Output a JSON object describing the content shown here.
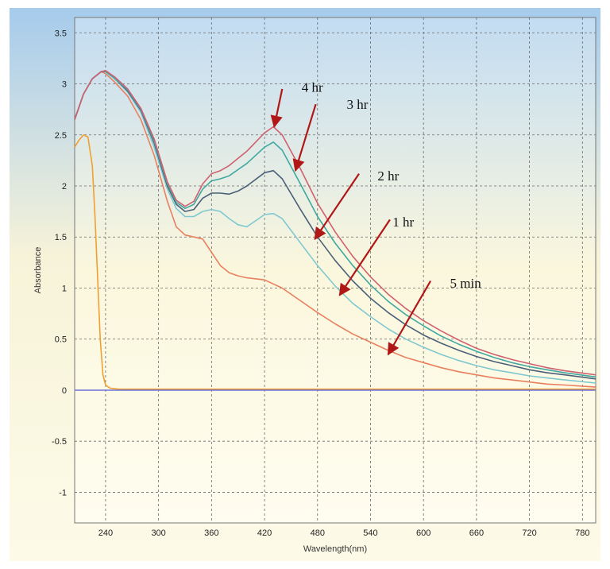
{
  "chart_data": {
    "type": "line",
    "xlabel": "Wavelength(nm)",
    "ylabel": "Absorbance",
    "xlim": [
      205,
      795
    ],
    "ylim": [
      -1.3,
      3.65
    ],
    "xticks": [
      240,
      300,
      360,
      420,
      480,
      540,
      600,
      660,
      720,
      780
    ],
    "yticks": [
      3.5,
      3,
      2.5,
      2,
      1.5,
      1,
      0.5,
      0,
      -0.5,
      -1
    ],
    "xtick_labels": [
      "240",
      "300",
      "360",
      "420",
      "480",
      "540",
      "600",
      "660",
      "720",
      "780"
    ],
    "ytick_labels": [
      "3.5",
      "3",
      "2.5",
      "2",
      "1.5",
      "1",
      "0.5",
      "0",
      "-0.5",
      "-1"
    ],
    "grid": true,
    "background": "gradient sky-blue to pale yellow",
    "series": [
      {
        "color": "#f0a030",
        "x": [
          205,
          210,
          215,
          220,
          225,
          228,
          231,
          234,
          237,
          240,
          245,
          255,
          270,
          300,
          400,
          795
        ],
        "y": [
          2.38,
          2.45,
          2.5,
          2.48,
          2.2,
          1.7,
          1.1,
          0.5,
          0.15,
          0.05,
          0.02,
          0.01,
          0.01,
          0.01,
          0.01,
          0.01
        ]
      },
      {
        "color": "#e88060",
        "x": [
          205,
          215,
          225,
          235,
          240,
          250,
          265,
          280,
          295,
          310,
          320,
          330,
          340,
          350,
          360,
          370,
          380,
          390,
          400,
          420,
          440,
          460,
          480,
          500,
          520,
          540,
          560,
          580,
          600,
          620,
          640,
          660,
          680,
          700,
          720,
          740,
          760,
          795
        ],
        "y": [
          2.65,
          2.9,
          3.05,
          3.12,
          3.1,
          3.02,
          2.88,
          2.65,
          2.3,
          1.85,
          1.6,
          1.52,
          1.5,
          1.48,
          1.35,
          1.22,
          1.15,
          1.12,
          1.1,
          1.08,
          1.0,
          0.88,
          0.76,
          0.65,
          0.55,
          0.47,
          0.39,
          0.32,
          0.27,
          0.22,
          0.18,
          0.15,
          0.12,
          0.1,
          0.08,
          0.06,
          0.05,
          0.03
        ]
      },
      {
        "color": "#80c8d0",
        "x": [
          205,
          215,
          225,
          235,
          240,
          250,
          265,
          280,
          295,
          310,
          320,
          330,
          340,
          350,
          360,
          370,
          380,
          390,
          400,
          420,
          430,
          440,
          460,
          480,
          500,
          520,
          540,
          560,
          580,
          600,
          620,
          640,
          660,
          680,
          700,
          720,
          740,
          760,
          795
        ],
        "y": [
          2.65,
          2.9,
          3.05,
          3.12,
          3.12,
          3.05,
          2.92,
          2.72,
          2.38,
          1.97,
          1.78,
          1.7,
          1.7,
          1.75,
          1.77,
          1.75,
          1.68,
          1.62,
          1.6,
          1.72,
          1.73,
          1.68,
          1.45,
          1.22,
          1.02,
          0.85,
          0.72,
          0.6,
          0.5,
          0.42,
          0.35,
          0.29,
          0.24,
          0.2,
          0.17,
          0.14,
          0.12,
          0.1,
          0.07
        ]
      },
      {
        "color": "#4a6078",
        "x": [
          205,
          215,
          225,
          235,
          240,
          250,
          265,
          280,
          295,
          310,
          320,
          330,
          340,
          350,
          360,
          370,
          380,
          390,
          400,
          420,
          430,
          440,
          460,
          480,
          500,
          520,
          540,
          560,
          580,
          600,
          620,
          640,
          660,
          680,
          700,
          720,
          740,
          760,
          795
        ],
        "y": [
          2.65,
          2.9,
          3.05,
          3.12,
          3.12,
          3.06,
          2.93,
          2.74,
          2.42,
          2.0,
          1.82,
          1.75,
          1.77,
          1.88,
          1.93,
          1.93,
          1.92,
          1.95,
          2.0,
          2.13,
          2.15,
          2.07,
          1.78,
          1.5,
          1.27,
          1.07,
          0.9,
          0.76,
          0.64,
          0.54,
          0.46,
          0.39,
          0.33,
          0.28,
          0.24,
          0.2,
          0.17,
          0.15,
          0.11
        ]
      },
      {
        "color": "#40a8a0",
        "x": [
          205,
          215,
          225,
          235,
          240,
          250,
          265,
          280,
          295,
          310,
          320,
          330,
          340,
          350,
          360,
          370,
          380,
          390,
          400,
          420,
          430,
          440,
          460,
          480,
          500,
          520,
          540,
          560,
          580,
          600,
          620,
          640,
          660,
          680,
          700,
          720,
          740,
          760,
          795
        ],
        "y": [
          2.65,
          2.9,
          3.05,
          3.12,
          3.12,
          3.06,
          2.94,
          2.75,
          2.44,
          2.02,
          1.84,
          1.78,
          1.82,
          1.97,
          2.05,
          2.07,
          2.1,
          2.16,
          2.22,
          2.38,
          2.43,
          2.35,
          2.03,
          1.7,
          1.44,
          1.22,
          1.03,
          0.87,
          0.74,
          0.63,
          0.53,
          0.45,
          0.38,
          0.32,
          0.27,
          0.23,
          0.2,
          0.17,
          0.13
        ]
      },
      {
        "color": "#d06070",
        "x": [
          205,
          215,
          225,
          235,
          240,
          250,
          265,
          280,
          295,
          310,
          320,
          330,
          340,
          350,
          360,
          370,
          380,
          390,
          400,
          420,
          430,
          440,
          460,
          480,
          500,
          520,
          540,
          560,
          580,
          600,
          620,
          640,
          660,
          680,
          700,
          720,
          740,
          760,
          795
        ],
        "y": [
          2.65,
          2.9,
          3.05,
          3.12,
          3.13,
          3.07,
          2.95,
          2.76,
          2.46,
          2.04,
          1.86,
          1.8,
          1.85,
          2.02,
          2.12,
          2.15,
          2.2,
          2.27,
          2.34,
          2.52,
          2.58,
          2.5,
          2.18,
          1.83,
          1.55,
          1.31,
          1.11,
          0.94,
          0.8,
          0.68,
          0.58,
          0.49,
          0.41,
          0.35,
          0.3,
          0.26,
          0.22,
          0.19,
          0.15
        ]
      },
      {
        "color": "#7070d8",
        "x": [
          205,
          795
        ],
        "y": [
          0.0,
          0.0
        ]
      }
    ],
    "annotations": [
      {
        "label": "4 hr",
        "label_x": 462,
        "label_y": 2.97,
        "arrow_from": [
          440,
          2.95
        ],
        "arrow_to": [
          431,
          2.58
        ]
      },
      {
        "label": "3 hr",
        "label_x": 513,
        "label_y": 2.8,
        "arrow_from": [
          478,
          2.8
        ],
        "arrow_to": [
          455,
          2.15
        ]
      },
      {
        "label": "2 hr",
        "label_x": 548,
        "label_y": 2.1,
        "arrow_from": [
          527,
          2.12
        ],
        "arrow_to": [
          477,
          1.48
        ]
      },
      {
        "label": "1 hr",
        "label_x": 565,
        "label_y": 1.65,
        "arrow_from": [
          562,
          1.67
        ],
        "arrow_to": [
          505,
          0.93
        ]
      },
      {
        "label": "5 min",
        "label_x": 630,
        "label_y": 1.05,
        "arrow_from": [
          608,
          1.07
        ],
        "arrow_to": [
          560,
          0.35
        ]
      }
    ]
  }
}
